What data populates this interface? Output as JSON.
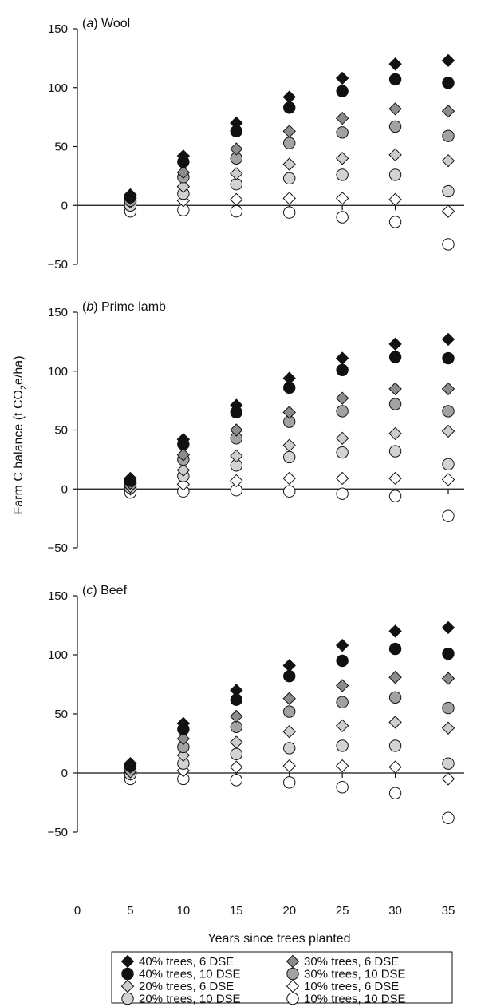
{
  "colors": {
    "series_40_6": "#111111",
    "series_40_10": "#111111",
    "series_30_6": "#8c8c8c",
    "series_30_10": "#a2a2a2",
    "series_20_6": "#cdcdcd",
    "series_20_10": "#d3d3d3",
    "series_10_6": "#ffffff",
    "series_10_10": "#ffffff",
    "axis": "#111111"
  },
  "chart_data": {
    "type": "scatter",
    "xlabel": "Years since trees planted",
    "ylabel": "Farm C balance (t CO2e/ha)",
    "x_ticks": [
      "0",
      "5",
      "10",
      "15",
      "20",
      "25",
      "30",
      "35"
    ],
    "x_values": [
      5,
      10,
      15,
      20,
      25,
      30,
      35
    ],
    "xlim": [
      0,
      35
    ],
    "ylim": [
      -50,
      150
    ],
    "y_ticks": [
      "150",
      "100",
      "50",
      "0",
      "-50"
    ],
    "grid": false,
    "legend_position": "bottom",
    "legend": [
      {
        "key": "s40_6",
        "label": "40% trees, 6 DSE",
        "marker": "diamond",
        "color": "#111111"
      },
      {
        "key": "s30_6",
        "label": "30% trees, 6 DSE",
        "marker": "diamond",
        "color": "#8c8c8c"
      },
      {
        "key": "s40_10",
        "label": "40% trees, 10 DSE",
        "marker": "circle",
        "color": "#111111"
      },
      {
        "key": "s30_10",
        "label": "30% trees, 10 DSE",
        "marker": "circle",
        "color": "#a2a2a2"
      },
      {
        "key": "s20_6",
        "label": "20% trees, 6 DSE",
        "marker": "diamond",
        "color": "#cdcdcd"
      },
      {
        "key": "s10_6",
        "label": "10% trees, 6 DSE",
        "marker": "diamond",
        "color": "#ffffff"
      },
      {
        "key": "s20_10",
        "label": "20% trees, 10 DSE",
        "marker": "circle",
        "color": "#d3d3d3"
      },
      {
        "key": "s10_10",
        "label": "10% trees, 10 DSE",
        "marker": "circle",
        "color": "#ffffff"
      }
    ],
    "panels": [
      {
        "letter": "a",
        "title": "Wool",
        "series": {
          "s40_6": [
            9,
            42,
            70,
            92,
            108,
            120,
            123
          ],
          "s40_10": [
            7,
            37,
            63,
            83,
            97,
            107,
            104
          ],
          "s30_6": [
            6,
            28,
            48,
            63,
            74,
            82,
            80
          ],
          "s30_10": [
            4,
            24,
            40,
            53,
            62,
            67,
            59
          ],
          "s20_6": [
            3,
            16,
            27,
            35,
            40,
            43,
            38
          ],
          "s20_10": [
            0,
            10,
            18,
            23,
            26,
            26,
            12
          ],
          "s10_6": [
            1,
            4,
            5,
            6,
            6,
            5,
            -5
          ],
          "s10_10": [
            -5,
            -4,
            -5,
            -6,
            -10,
            -14,
            -33
          ]
        }
      },
      {
        "letter": "b",
        "title": "Prime lamb",
        "series": {
          "s40_6": [
            9,
            42,
            71,
            94,
            111,
            123,
            127
          ],
          "s40_10": [
            7,
            38,
            65,
            86,
            101,
            112,
            111
          ],
          "s30_6": [
            5,
            29,
            50,
            65,
            77,
            85,
            85
          ],
          "s30_10": [
            4,
            25,
            43,
            57,
            66,
            72,
            66
          ],
          "s20_6": [
            2,
            16,
            28,
            37,
            43,
            47,
            49
          ],
          "s20_10": [
            1,
            11,
            20,
            27,
            31,
            32,
            21
          ],
          "s10_6": [
            0,
            4,
            7,
            9,
            9,
            9,
            8
          ],
          "s10_10": [
            -3,
            -2,
            -1,
            -2,
            -4,
            -6,
            -23
          ]
        }
      },
      {
        "letter": "c",
        "title": "Beef",
        "series": {
          "s40_6": [
            8,
            42,
            70,
            91,
            108,
            120,
            123
          ],
          "s40_10": [
            6,
            37,
            62,
            82,
            95,
            105,
            101
          ],
          "s30_6": [
            5,
            29,
            48,
            63,
            74,
            81,
            80
          ],
          "s30_10": [
            3,
            22,
            39,
            52,
            60,
            64,
            55
          ],
          "s20_6": [
            1,
            15,
            26,
            35,
            40,
            43,
            38
          ],
          "s20_10": [
            -1,
            8,
            16,
            21,
            23,
            23,
            8
          ],
          "s10_6": [
            -1,
            2,
            5,
            6,
            6,
            5,
            -5
          ],
          "s10_10": [
            -5,
            -5,
            -6,
            -8,
            -12,
            -17,
            -38
          ]
        }
      }
    ]
  }
}
